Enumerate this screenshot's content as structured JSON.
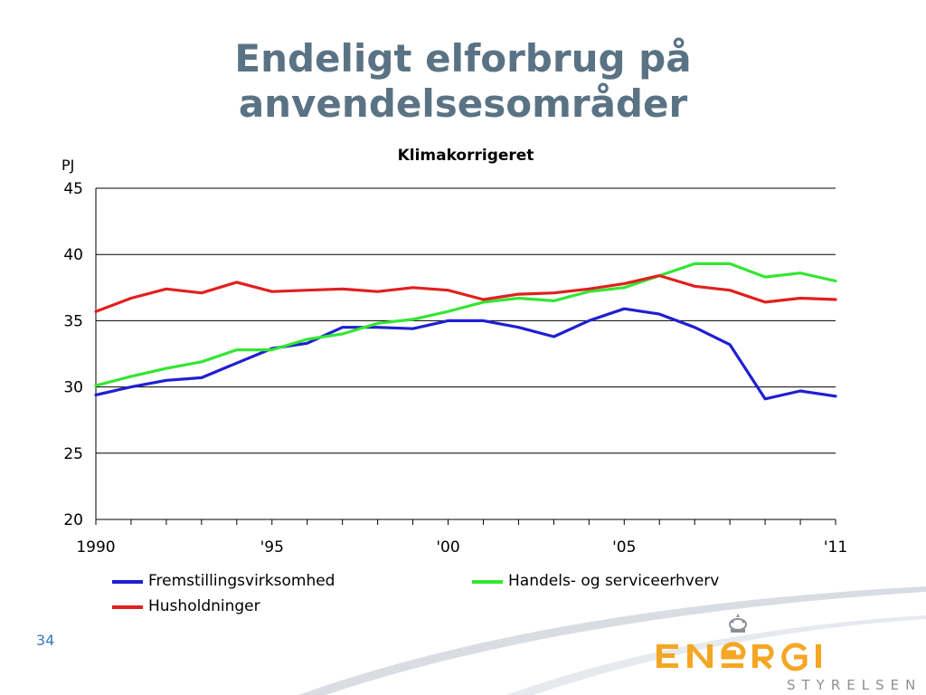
{
  "slide": {
    "title_line1": "Endeligt elforbrug på",
    "title_line2": "anvendelsesområder",
    "page_number": "34"
  },
  "chart_data": {
    "type": "line",
    "title": "Klimakorrigeret",
    "ylabel": "PJ",
    "xlabel": "",
    "x": [
      1990,
      1991,
      1992,
      1993,
      1994,
      1995,
      1996,
      1997,
      1998,
      1999,
      2000,
      2001,
      2002,
      2003,
      2004,
      2005,
      2006,
      2007,
      2008,
      2009,
      2010,
      2011
    ],
    "xlim": [
      1990,
      2011
    ],
    "ylim": [
      20,
      45
    ],
    "yticks": [
      "20",
      "25",
      "30",
      "35",
      "40",
      "45"
    ],
    "xticks": [
      {
        "x": 1990,
        "label": "1990"
      },
      {
        "x": 1995,
        "label": "'95"
      },
      {
        "x": 2000,
        "label": "'00"
      },
      {
        "x": 2005,
        "label": "'05"
      },
      {
        "x": 2011,
        "label": "'11"
      }
    ],
    "grid": true,
    "legend_position": "bottom",
    "series": [
      {
        "name": "Fremstillingsvirksomhed",
        "color": "#1f1fd1",
        "values": [
          29.4,
          30.0,
          30.5,
          30.7,
          31.8,
          32.9,
          33.3,
          34.5,
          34.5,
          34.4,
          35.0,
          35.0,
          34.5,
          33.8,
          35.0,
          35.9,
          35.5,
          34.5,
          33.2,
          29.1,
          29.7,
          29.3
        ]
      },
      {
        "name": "Handels- og serviceerhverv",
        "color": "#33e633",
        "values": [
          30.1,
          30.8,
          31.4,
          31.9,
          32.8,
          32.8,
          33.6,
          34.0,
          34.8,
          35.1,
          35.7,
          36.4,
          36.7,
          36.5,
          37.2,
          37.5,
          38.4,
          39.3,
          39.3,
          38.3,
          38.6,
          38.0
        ]
      },
      {
        "name": "Husholdninger",
        "color": "#e0201e",
        "values": [
          35.7,
          36.7,
          37.4,
          37.1,
          37.9,
          37.2,
          37.3,
          37.4,
          37.2,
          37.5,
          37.3,
          36.6,
          37.0,
          37.1,
          37.4,
          37.8,
          38.4,
          37.6,
          37.3,
          36.4,
          36.7,
          36.6
        ]
      }
    ]
  },
  "logo": {
    "text": "ENERGI",
    "subtext": "STYRELSEN",
    "accent_color": "#f5a623"
  }
}
